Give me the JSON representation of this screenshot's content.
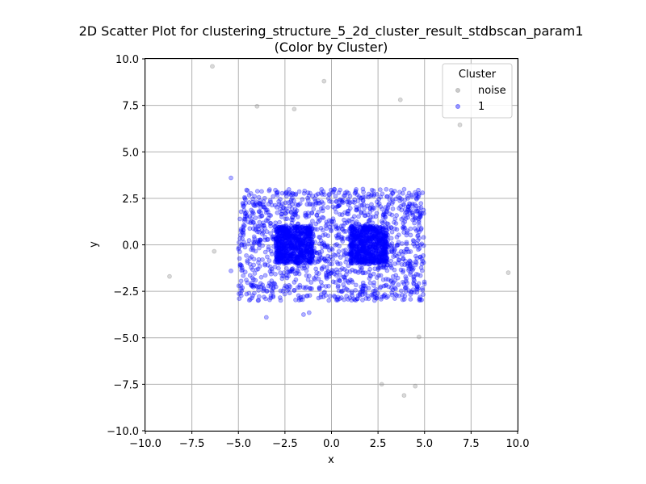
{
  "chart_data": {
    "type": "scatter",
    "title_line1": "2D Scatter Plot for clustering_structure_5_2d_cluster_result_stdbscan_param1",
    "title_line2": "(Color by Cluster)",
    "xlabel": "x",
    "ylabel": "y",
    "xlim": [
      -10,
      10
    ],
    "ylim": [
      -10,
      10
    ],
    "xticks": [
      -10.0,
      -7.5,
      -5.0,
      -2.5,
      0.0,
      2.5,
      5.0,
      7.5,
      10.0
    ],
    "yticks": [
      -10.0,
      -7.5,
      -5.0,
      -2.5,
      0.0,
      2.5,
      5.0,
      7.5,
      10.0
    ],
    "xtick_labels": [
      "−10.0",
      "−7.5",
      "−5.0",
      "−2.5",
      "0.0",
      "2.5",
      "5.0",
      "7.5",
      "10.0"
    ],
    "ytick_labels": [
      "−10.0",
      "−7.5",
      "−5.0",
      "−2.5",
      "0.0",
      "2.5",
      "5.0",
      "7.5",
      "10.0"
    ],
    "grid": true,
    "legend": {
      "title": "Cluster",
      "placement": "top-right",
      "entries": [
        "noise",
        "1"
      ]
    },
    "series": [
      {
        "name": "noise",
        "color": "#808080",
        "points": [
          [
            -6.4,
            9.6
          ],
          [
            -0.4,
            8.8
          ],
          [
            -4.0,
            7.45
          ],
          [
            -2.0,
            7.3
          ],
          [
            3.7,
            7.8
          ],
          [
            6.9,
            6.45
          ],
          [
            -8.7,
            -1.7
          ],
          [
            -6.3,
            -0.35
          ],
          [
            9.5,
            -1.5
          ],
          [
            4.7,
            -4.95
          ],
          [
            2.7,
            -7.5
          ],
          [
            4.5,
            -7.6
          ],
          [
            3.9,
            -8.1
          ]
        ]
      },
      {
        "name": "1",
        "color": "#0000ff",
        "outliers": [
          [
            -5.4,
            3.6
          ],
          [
            -5.4,
            -1.4
          ],
          [
            -3.5,
            -3.9
          ],
          [
            -1.5,
            -3.75
          ],
          [
            -1.2,
            -3.65
          ]
        ],
        "uniform_region": {
          "x": [
            -5.0,
            5.0
          ],
          "y": [
            -3.0,
            3.0
          ],
          "count": 1400
        },
        "dense_squares": [
          {
            "x": [
              -3.0,
              -1.0
            ],
            "y": [
              -1.0,
              1.0
            ],
            "count": 700
          },
          {
            "x": [
              1.0,
              3.0
            ],
            "y": [
              -1.0,
              1.0
            ],
            "count": 700
          }
        ]
      }
    ]
  }
}
